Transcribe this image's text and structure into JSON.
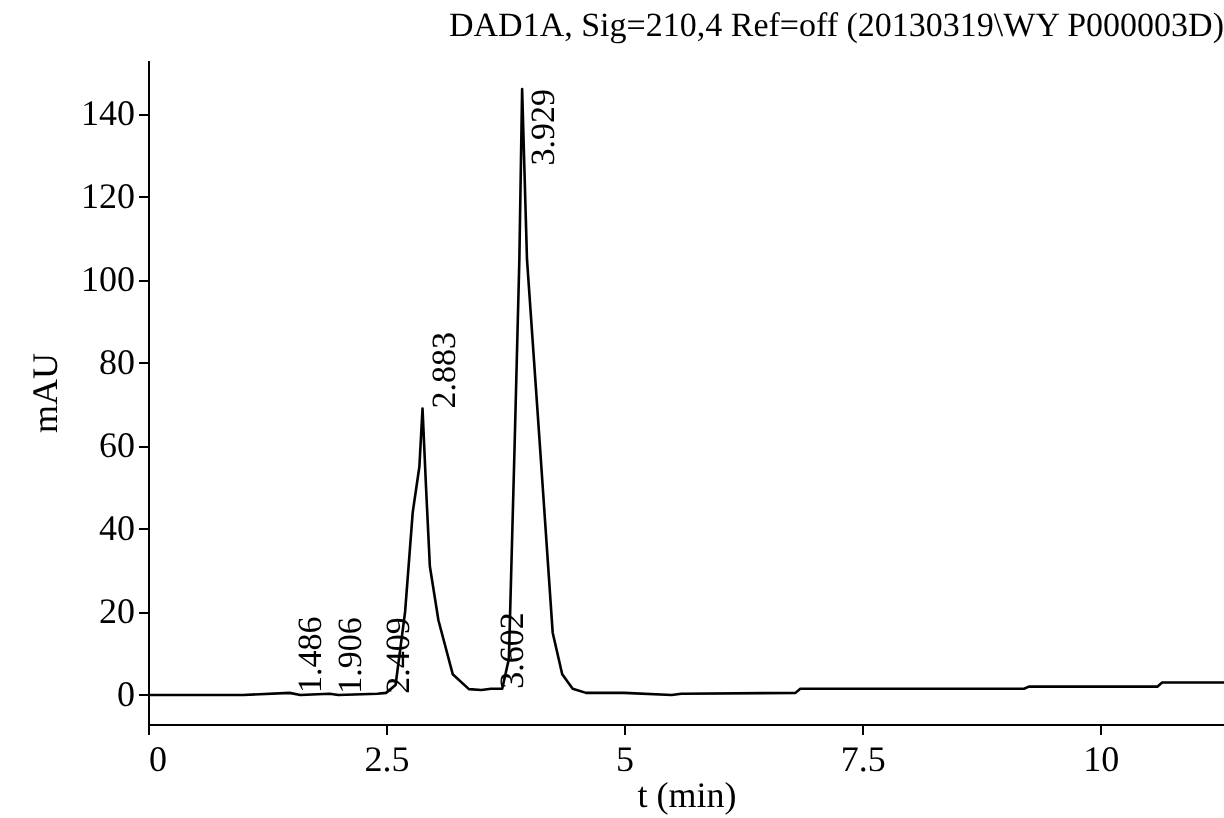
{
  "chart_data": {
    "type": "line",
    "title": "DAD1A, Sig=210,4 Ref=off (20130319\\WY P000003D)",
    "xlabel": "t (min)",
    "ylabel": "mAU",
    "x": [
      0,
      1.0,
      1.486,
      1.6,
      1.906,
      2.0,
      2.409,
      2.5,
      2.6,
      2.7,
      2.78,
      2.85,
      2.883,
      2.92,
      2.96,
      3.05,
      3.2,
      3.37,
      3.5,
      3.602,
      3.72,
      3.79,
      3.85,
      3.9,
      3.929,
      3.98,
      4.11,
      4.25,
      4.35,
      4.46,
      4.6,
      5.0,
      5.5,
      5.6,
      6.8,
      6.85,
      9.2,
      9.25,
      10.6,
      10.65,
      11.3
    ],
    "series": [
      {
        "color": "#000000",
        "values": [
          0,
          0,
          0.5,
          0,
          0.3,
          0,
          0.3,
          0.5,
          2.4,
          20,
          44,
          55,
          69,
          50,
          31,
          18,
          5,
          1.4,
          1.2,
          1.5,
          1.5,
          8.7,
          60,
          105,
          146,
          105,
          62,
          15,
          5,
          1.5,
          0.5,
          0.5,
          0,
          0.3,
          0.5,
          1.5,
          1.5,
          2,
          2,
          3,
          3
        ]
      }
    ],
    "xlim": [
      0,
      11.3
    ],
    "ylim": [
      -7,
      153
    ],
    "xticks": [
      0,
      2.5,
      5,
      7.5,
      10
    ],
    "yticks": [
      0,
      20,
      40,
      60,
      80,
      100,
      120,
      140
    ],
    "annotations": [
      {
        "text": "1.486",
        "x": 1.486,
        "y": 0.5
      },
      {
        "text": "1.906",
        "x": 1.906,
        "y": 0.3
      },
      {
        "text": "2.409",
        "x": 2.409,
        "y": 0.3
      },
      {
        "text": "2.883",
        "x": 2.883,
        "y": 69
      },
      {
        "text": "3.602",
        "x": 3.602,
        "y": 1.5
      },
      {
        "text": "3.929",
        "x": 3.929,
        "y": 146
      }
    ],
    "grid": false,
    "marker": "none",
    "line_style": "solid"
  }
}
